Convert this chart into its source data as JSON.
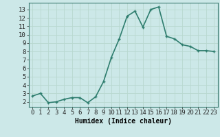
{
  "x": [
    0,
    1,
    2,
    3,
    4,
    5,
    6,
    7,
    8,
    9,
    10,
    11,
    12,
    13,
    14,
    15,
    16,
    17,
    18,
    19,
    20,
    21,
    22,
    23
  ],
  "y": [
    2.7,
    3.0,
    1.9,
    2.0,
    2.3,
    2.5,
    2.5,
    1.9,
    2.6,
    4.4,
    7.3,
    9.5,
    12.2,
    12.8,
    10.9,
    13.0,
    13.3,
    9.8,
    9.5,
    8.8,
    8.6,
    8.1,
    8.1,
    8.0
  ],
  "xlabel": "Humidex (Indice chaleur)",
  "xlim": [
    -0.5,
    23.5
  ],
  "ylim": [
    1.4,
    13.8
  ],
  "yticks": [
    2,
    3,
    4,
    5,
    6,
    7,
    8,
    9,
    10,
    11,
    12,
    13
  ],
  "xticks": [
    0,
    1,
    2,
    3,
    4,
    5,
    6,
    7,
    8,
    9,
    10,
    11,
    12,
    13,
    14,
    15,
    16,
    17,
    18,
    19,
    20,
    21,
    22,
    23
  ],
  "line_color": "#2e7d6e",
  "bg_color": "#cce8e8",
  "grid_color": "#b8d8d0",
  "marker_size": 2.5,
  "line_width": 1.2,
  "xlabel_fontsize": 7,
  "tick_fontsize": 6.5
}
